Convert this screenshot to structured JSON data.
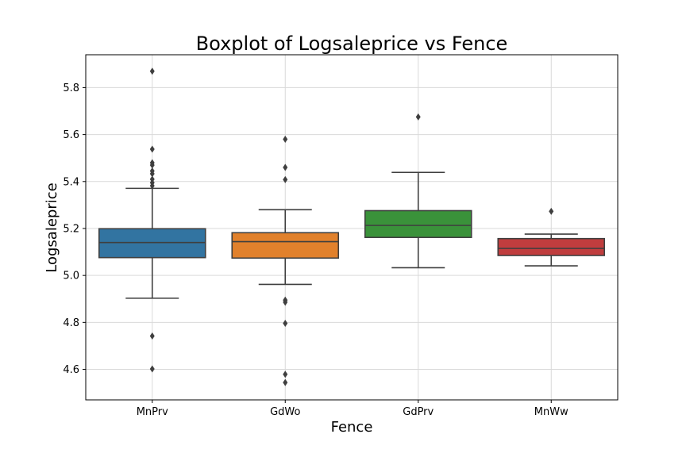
{
  "chart_data": {
    "type": "box",
    "title": "Boxplot of Logsaleprice vs Fence",
    "xlabel": "Fence",
    "ylabel": "Logsaleprice",
    "ylim": [
      4.47,
      5.94
    ],
    "yticks": [
      4.6,
      4.8,
      5.0,
      5.2,
      5.4,
      5.6,
      5.8
    ],
    "grid": true,
    "categories": [
      "MnPrv",
      "GdWo",
      "GdPrv",
      "MnWw"
    ],
    "colors": [
      "#3274a1",
      "#e1812c",
      "#3a923a",
      "#c03d3e"
    ],
    "series": [
      {
        "whisker_low": 4.903,
        "q1": 5.076,
        "median": 5.14,
        "q3": 5.199,
        "whisker_high": 5.371,
        "outliers": [
          5.87,
          5.538,
          5.48,
          5.47,
          5.445,
          5.433,
          5.41,
          5.395,
          5.382,
          4.742,
          4.602
        ]
      },
      {
        "whisker_low": 4.962,
        "q1": 5.074,
        "median": 5.144,
        "q3": 5.182,
        "whisker_high": 5.28,
        "outliers": [
          5.58,
          5.46,
          5.408,
          4.895,
          4.886,
          4.796,
          4.579,
          4.544
        ]
      },
      {
        "whisker_low": 5.033,
        "q1": 5.162,
        "median": 5.213,
        "q3": 5.276,
        "whisker_high": 5.439,
        "outliers": [
          5.675
        ]
      },
      {
        "whisker_low": 5.041,
        "q1": 5.085,
        "median": 5.115,
        "q3": 5.157,
        "whisker_high": 5.176,
        "outliers": [
          5.273
        ]
      }
    ]
  }
}
